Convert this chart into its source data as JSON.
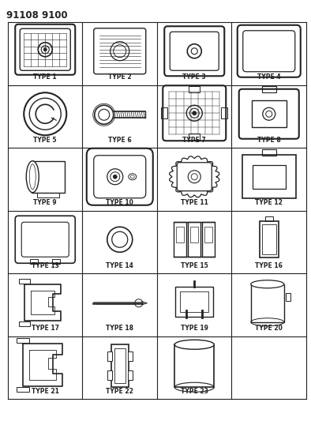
{
  "title": "91108 9100",
  "bg_color": "#ffffff",
  "line_color": "#222222",
  "fig_width": 3.94,
  "fig_height": 5.33,
  "dpi": 100,
  "types": [
    "TYPE 1",
    "TYPE 2",
    "TYPE 3",
    "TYPE 4",
    "TYPE 5",
    "TYPE 6",
    "TYPE 7",
    "TYPE 8",
    "TYPE 9",
    "TYPE 10",
    "TYPE 11",
    "TYPE 12",
    "TYPE 13",
    "TYPE 14",
    "TYPE 15",
    "TYPE 16",
    "TYPE 17",
    "TYPE 18",
    "TYPE 19",
    "TYPE 20",
    "TYPE 21",
    "TYPE 22",
    "TYPE 23",
    ""
  ]
}
